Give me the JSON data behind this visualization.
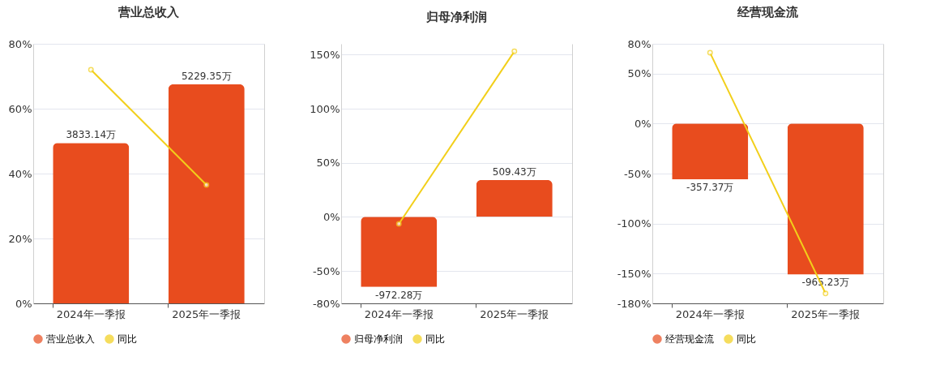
{
  "chart_data": [
    {
      "type": "bar",
      "title": "营业总收入",
      "categories": [
        "2024年一季报",
        "2025年一季报"
      ],
      "series": [
        {
          "name": "营业总收入",
          "axis": "y2",
          "color": "#e84c1e",
          "values": [
            3833.14,
            5229.35
          ],
          "value_labels": [
            "3833.14万",
            "5229.35万"
          ]
        },
        {
          "name": "同比",
          "type": "line",
          "color": "#f2cf1a",
          "values": [
            72,
            36.5
          ]
        }
      ],
      "ylim": [
        0,
        80
      ],
      "yticks": [
        {
          "value": 0,
          "label": "0%"
        },
        {
          "value": 20,
          "label": "20%"
        },
        {
          "value": 40,
          "label": "40%"
        },
        {
          "value": 60,
          "label": "60%"
        },
        {
          "value": 80,
          "label": "80%"
        }
      ],
      "y2lim": [
        0,
        6200
      ],
      "grid": "y",
      "legend": "bottom",
      "marker": "circle",
      "tick_labels": "xy"
    },
    {
      "type": "bar",
      "title": "归母净利润",
      "categories": [
        "2024年一季报",
        "2025年一季报"
      ],
      "series": [
        {
          "name": "归母净利润",
          "axis": "y2",
          "color": "#e84c1e",
          "values": [
            -972.28,
            509.43
          ],
          "value_labels": [
            "-972.28万",
            "509.43万"
          ]
        },
        {
          "name": "同比",
          "type": "line",
          "color": "#f2cf1a",
          "values": [
            -6.5,
            153
          ]
        }
      ],
      "ylim": [
        -80,
        160
      ],
      "yticks": [
        {
          "value": -80,
          "label": "-80%"
        },
        {
          "value": -50,
          "label": "-50%"
        },
        {
          "value": 0,
          "label": "0%"
        },
        {
          "value": 50,
          "label": "50%"
        },
        {
          "value": 100,
          "label": "100%"
        },
        {
          "value": 150,
          "label": "150%"
        }
      ],
      "y2lim": [
        -1200,
        2400
      ],
      "grid": "y",
      "legend": "bottom",
      "marker": "circle",
      "tick_labels": "xy"
    },
    {
      "type": "bar",
      "title": "经营现金流",
      "categories": [
        "2024年一季报",
        "2025年一季报"
      ],
      "series": [
        {
          "name": "经营现金流",
          "axis": "y2",
          "color": "#e84c1e",
          "values": [
            -357.37,
            -965.23
          ],
          "value_labels": [
            "-357.37万",
            "-965.23万"
          ]
        },
        {
          "name": "同比",
          "type": "line",
          "color": "#f2cf1a",
          "values": [
            71,
            -170
          ]
        }
      ],
      "ylim": [
        -180,
        80
      ],
      "yticks": [
        {
          "value": -180,
          "label": "-180%"
        },
        {
          "value": -150,
          "label": "-150%"
        },
        {
          "value": -100,
          "label": "-100%"
        },
        {
          "value": -50,
          "label": "-50%"
        },
        {
          "value": 0,
          "label": "0%"
        },
        {
          "value": 50,
          "label": "50%"
        },
        {
          "value": 80,
          "label": "80%"
        }
      ],
      "y2lim": [
        -1150,
        510
      ],
      "grid": "y",
      "legend": "bottom",
      "marker": "circle",
      "tick_labels": "xy"
    }
  ]
}
